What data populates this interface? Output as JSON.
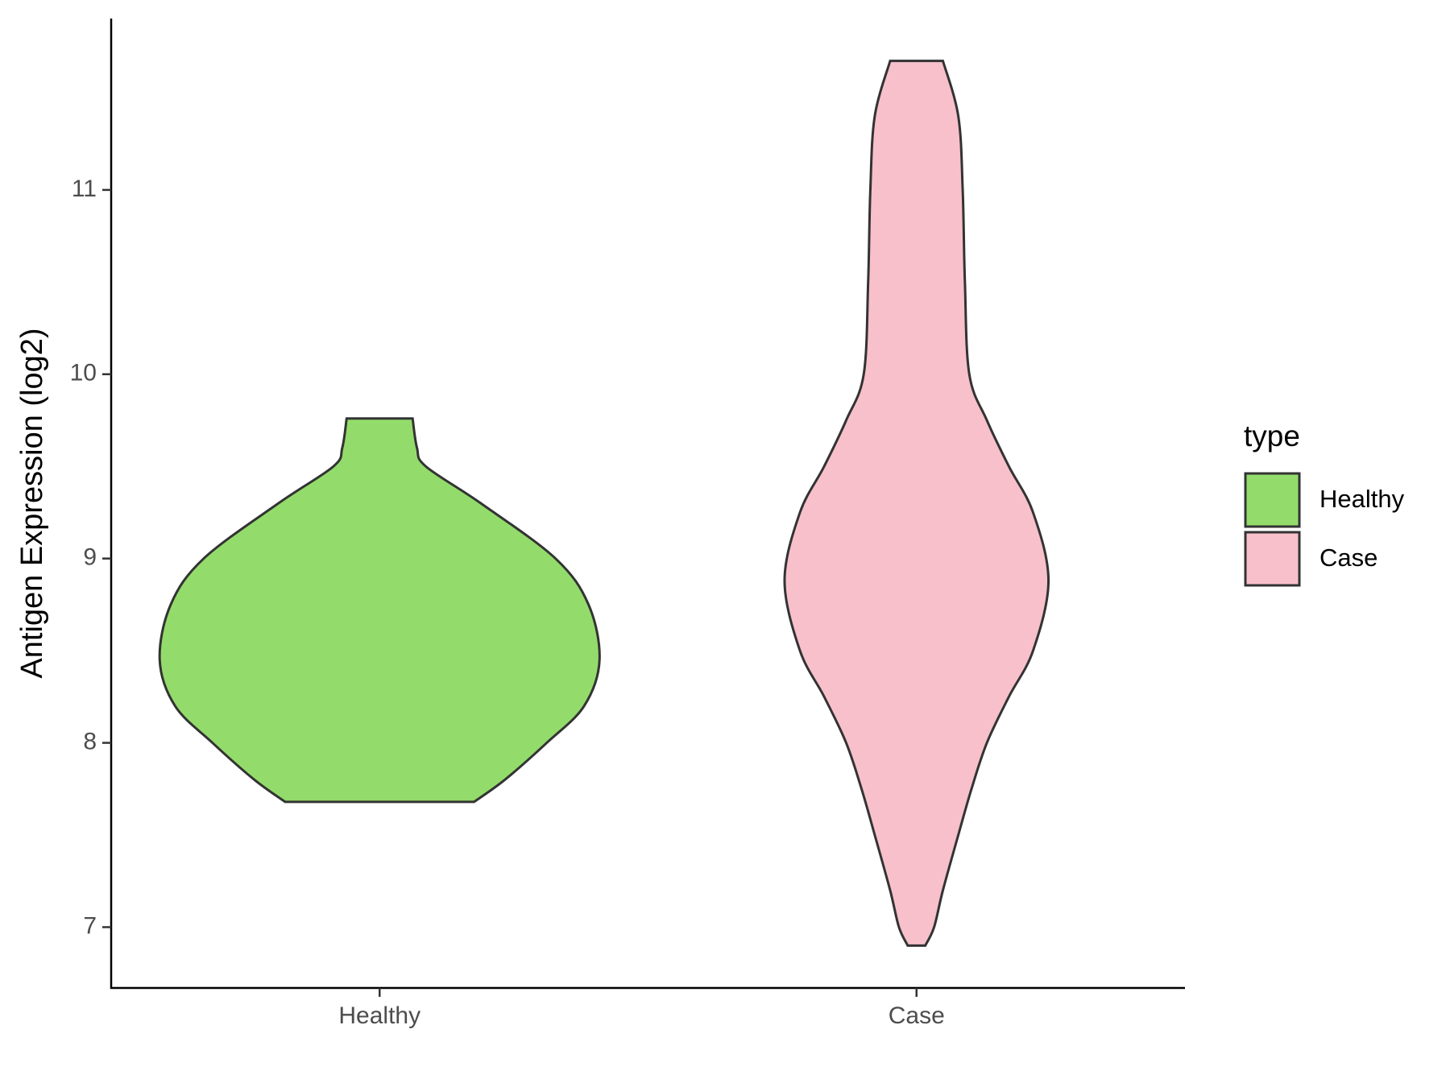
{
  "chart_data": {
    "type": "violin",
    "y_label": "Antigen Expression (log2)",
    "categories": [
      "Healthy",
      "Case"
    ],
    "ylim": [
      6.67,
      11.93
    ],
    "yticks": [
      7,
      8,
      9,
      10,
      11
    ],
    "legend_title": "type",
    "legend_position": "right",
    "series": [
      {
        "name": "Healthy",
        "color": "#93dc6b",
        "y": [
          9.76,
          9.6,
          9.5,
          9.3,
          9.0,
          8.75,
          8.45,
          8.2,
          8.0,
          7.8,
          7.68
        ],
        "density": [
          0.15,
          0.17,
          0.21,
          0.46,
          0.8,
          0.95,
          1.0,
          0.93,
          0.76,
          0.57,
          0.43
        ]
      },
      {
        "name": "Case",
        "color": "#f7c0cb",
        "y": [
          11.7,
          11.4,
          11.0,
          10.5,
          10.0,
          9.75,
          9.5,
          9.25,
          8.88,
          8.5,
          8.25,
          8.0,
          7.75,
          7.5,
          7.2,
          7.0,
          6.9
        ],
        "density": [
          0.12,
          0.19,
          0.21,
          0.22,
          0.24,
          0.32,
          0.42,
          0.53,
          0.6,
          0.53,
          0.42,
          0.32,
          0.25,
          0.19,
          0.12,
          0.08,
          0.04
        ]
      }
    ]
  }
}
